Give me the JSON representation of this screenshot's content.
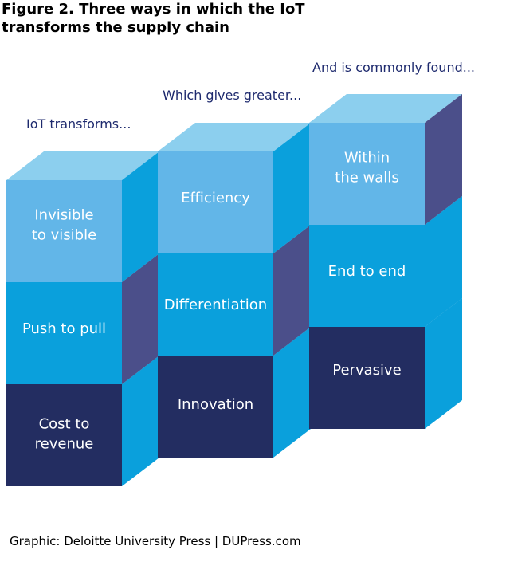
{
  "figure": {
    "title_line1": "Figure 2. Three ways in which the IoT",
    "title_line2": "transforms the supply chain"
  },
  "columns": [
    {
      "heading": "IoT transforms...",
      "cubes": [
        {
          "lines": [
            "Invisible",
            "to visible"
          ],
          "color": "#62b6e8"
        },
        {
          "lines": [
            "Push to pull"
          ],
          "color": "#0aa0dc"
        },
        {
          "lines": [
            "Cost to",
            "revenue"
          ],
          "color": "#232d61"
        }
      ]
    },
    {
      "heading": "Which gives greater...",
      "cubes": [
        {
          "lines": [
            "Efficiency"
          ],
          "color": "#62b6e8"
        },
        {
          "lines": [
            "Differentiation"
          ],
          "color": "#0aa0dc"
        },
        {
          "lines": [
            "Innovation"
          ],
          "color": "#232d61"
        }
      ]
    },
    {
      "heading": "And is commonly found...",
      "cubes": [
        {
          "lines": [
            "Within",
            "the walls"
          ],
          "color": "#62b6e8"
        },
        {
          "lines": [
            "End to end"
          ],
          "color": "#0aa0dc"
        },
        {
          "lines": [
            "Pervasive"
          ],
          "color": "#232d61"
        }
      ]
    }
  ],
  "colors": {
    "top_face_light": "#8ccfee",
    "top_face_mid": "#9fc3d9",
    "side_face": "#0aa0dc",
    "side_face_shadow": "#4b4f8a"
  },
  "source": "Graphic: Deloitte University Press  |  DUPress.com"
}
